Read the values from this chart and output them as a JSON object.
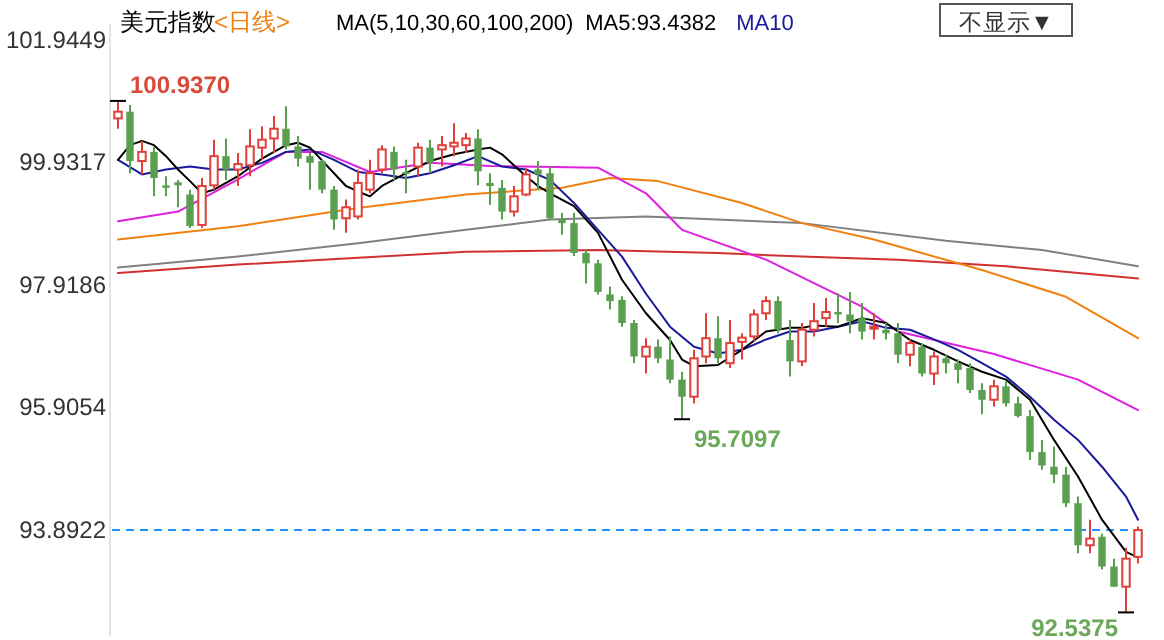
{
  "chart_data": {
    "type": "candlestick",
    "title": "美元指数",
    "subtitle": "<日线>",
    "annotations": [
      "MA(5,10,30,60,100,200)",
      "MA5:93.4382",
      "MA10",
      "不显示▼",
      "100.9370",
      "95.7097",
      "92.5375"
    ],
    "categories": [
      null,
      null,
      null,
      null,
      null,
      null,
      null,
      null,
      null,
      null,
      null,
      null,
      null,
      null,
      null,
      null,
      null,
      null,
      null,
      null,
      null,
      null,
      null,
      null,
      null,
      null,
      null,
      null,
      null,
      null,
      null,
      null,
      null,
      null,
      null,
      null,
      null,
      null,
      null,
      null,
      null,
      null,
      null,
      null,
      null,
      null,
      null,
      null,
      null,
      null,
      null,
      null,
      null,
      null,
      null,
      null,
      null,
      null,
      null,
      null,
      null,
      null,
      null,
      null,
      null,
      null,
      null,
      null,
      null,
      null,
      null,
      null,
      null,
      null,
      null,
      null,
      null,
      null,
      null,
      null,
      null,
      null,
      null,
      null,
      null,
      null
    ],
    "ohlc": [
      [
        100.65,
        100.937,
        100.48,
        100.76
      ],
      [
        100.76,
        100.87,
        99.75,
        99.95
      ],
      [
        99.95,
        100.28,
        99.73,
        100.1
      ],
      [
        100.1,
        100.19,
        99.37,
        99.67
      ],
      [
        99.55,
        99.7,
        99.37,
        99.51
      ],
      [
        99.6,
        99.64,
        99.19,
        99.55
      ],
      [
        99.4,
        99.48,
        98.85,
        98.88
      ],
      [
        98.9,
        99.67,
        98.85,
        99.54
      ],
      [
        99.55,
        100.3,
        99.48,
        100.03
      ],
      [
        100.03,
        100.32,
        99.64,
        99.81
      ],
      [
        99.81,
        100.08,
        99.54,
        99.9
      ],
      [
        99.88,
        100.47,
        99.7,
        100.19
      ],
      [
        100.17,
        100.52,
        99.97,
        100.3
      ],
      [
        100.32,
        100.69,
        100.08,
        100.48
      ],
      [
        100.48,
        100.85,
        100.14,
        100.19
      ],
      [
        100.19,
        100.36,
        99.86,
        99.99
      ],
      [
        100.03,
        100.08,
        99.48,
        99.92
      ],
      [
        99.95,
        99.97,
        99.42,
        99.48
      ],
      [
        99.48,
        99.54,
        98.82,
        98.99
      ],
      [
        99.01,
        99.32,
        98.77,
        99.19
      ],
      [
        99.04,
        99.81,
        98.99,
        99.59
      ],
      [
        99.48,
        99.97,
        99.42,
        99.75
      ],
      [
        99.81,
        100.21,
        99.75,
        100.14
      ],
      [
        100.1,
        100.19,
        99.64,
        99.81
      ],
      [
        99.77,
        99.97,
        99.42,
        99.75
      ],
      [
        99.86,
        100.25,
        99.7,
        100.17
      ],
      [
        100.17,
        100.3,
        99.75,
        99.92
      ],
      [
        100.14,
        100.36,
        99.86,
        100.21
      ],
      [
        100.19,
        100.57,
        100.03,
        100.25
      ],
      [
        100.21,
        100.41,
        100.08,
        100.32
      ],
      [
        100.32,
        100.47,
        99.55,
        99.78
      ],
      [
        99.59,
        99.75,
        99.23,
        99.54
      ],
      [
        99.51,
        99.64,
        98.99,
        99.12
      ],
      [
        99.12,
        99.54,
        99.04,
        99.37
      ],
      [
        99.4,
        99.84,
        99.37,
        99.73
      ],
      [
        99.81,
        99.95,
        99.48,
        99.73
      ],
      [
        99.75,
        99.86,
        98.99,
        99.01
      ],
      [
        98.99,
        99.1,
        98.74,
        98.93
      ],
      [
        98.93,
        99.1,
        98.39,
        98.44
      ],
      [
        98.44,
        98.49,
        97.94,
        98.27
      ],
      [
        98.27,
        98.33,
        97.76,
        97.8
      ],
      [
        97.76,
        97.89,
        97.51,
        97.65
      ],
      [
        97.67,
        97.73,
        97.23,
        97.29
      ],
      [
        97.29,
        97.34,
        96.63,
        96.74
      ],
      [
        96.74,
        97.04,
        96.46,
        96.9
      ],
      [
        96.9,
        97.02,
        96.63,
        96.71
      ],
      [
        96.69,
        97.07,
        96.3,
        96.36
      ],
      [
        96.36,
        96.49,
        95.7097,
        96.08
      ],
      [
        96.08,
        96.85,
        95.97,
        96.71
      ],
      [
        96.74,
        97.45,
        96.63,
        97.04
      ],
      [
        97.04,
        97.4,
        96.63,
        96.71
      ],
      [
        96.63,
        97.34,
        96.55,
        96.96
      ],
      [
        96.98,
        97.12,
        96.69,
        97.05
      ],
      [
        97.07,
        97.51,
        96.99,
        97.43
      ],
      [
        97.45,
        97.73,
        97.34,
        97.65
      ],
      [
        97.65,
        97.73,
        97.12,
        97.18
      ],
      [
        97.01,
        97.34,
        96.41,
        96.66
      ],
      [
        96.66,
        97.29,
        96.58,
        97.18
      ],
      [
        97.18,
        97.62,
        97.07,
        97.32
      ],
      [
        97.37,
        97.7,
        97.23,
        97.47
      ],
      [
        97.47,
        97.78,
        97.29,
        97.43
      ],
      [
        97.43,
        97.8,
        97.12,
        97.32
      ],
      [
        97.37,
        97.62,
        97.02,
        97.15
      ],
      [
        97.21,
        97.45,
        97.02,
        97.23
      ],
      [
        97.18,
        97.29,
        97.02,
        97.12
      ],
      [
        97.12,
        97.29,
        96.63,
        96.77
      ],
      [
        96.77,
        97.02,
        96.58,
        96.96
      ],
      [
        96.9,
        96.96,
        96.41,
        96.46
      ],
      [
        96.46,
        96.82,
        96.27,
        96.74
      ],
      [
        96.71,
        96.77,
        96.46,
        96.63
      ],
      [
        96.63,
        96.69,
        96.3,
        96.52
      ],
      [
        96.55,
        96.63,
        96.14,
        96.19
      ],
      [
        96.19,
        96.3,
        95.79,
        96.03
      ],
      [
        96.03,
        96.36,
        95.92,
        96.25
      ],
      [
        96.25,
        96.33,
        95.92,
        95.97
      ],
      [
        95.97,
        96.08,
        95.74,
        95.76
      ],
      [
        95.76,
        95.86,
        95.04,
        95.17
      ],
      [
        95.17,
        95.37,
        94.88,
        94.95
      ],
      [
        94.93,
        95.26,
        94.66,
        94.8
      ],
      [
        94.8,
        94.93,
        94.27,
        94.33
      ],
      [
        94.33,
        94.44,
        93.51,
        93.64
      ],
      [
        93.64,
        94.06,
        93.51,
        93.75
      ],
      [
        93.78,
        93.83,
        93.24,
        93.29
      ],
      [
        93.29,
        93.42,
        92.96,
        92.96
      ],
      [
        92.96,
        93.6,
        92.5375,
        93.42
      ],
      [
        93.45,
        93.95,
        93.34,
        93.89
      ]
    ],
    "series": [
      {
        "type": "line",
        "color": "#000000",
        "values": [
          99.97,
          100.21,
          100.28,
          100.21,
          100.03,
          99.81,
          99.62,
          99.42,
          99.48,
          null,
          99.7,
          null,
          99.99,
          null,
          100.21,
          100.25,
          100.17,
          null,
          99.75,
          99.54,
          99.45,
          99.37,
          99.54,
          null,
          99.75,
          null,
          99.95,
          null,
          100.06,
          null,
          100.14,
          100.17,
          100.06,
          null,
          99.7,
          99.54,
          99.42,
          null,
          99.21,
          null,
          98.77,
          null,
          98.0,
          null,
          97.45,
          null,
          97.01,
          96.69,
          96.58,
          null,
          96.6,
          null,
          96.85,
          null,
          97.15,
          null,
          97.21,
          97.21,
          97.25,
          null,
          97.23,
          null,
          97.37,
          null,
          97.29,
          null,
          97.01,
          null,
          96.85,
          null,
          96.66,
          null,
          96.49,
          null,
          96.36,
          null,
          96.03,
          null,
          95.37,
          null,
          94.77,
          null,
          94.06,
          null,
          93.53,
          93.44
        ]
      },
      {
        "type": "line",
        "color": "#1a1a9a",
        "values": [
          99.97,
          null,
          99.73,
          null,
          99.81,
          null,
          99.86,
          null,
          99.81,
          null,
          99.81,
          null,
          99.92,
          null,
          100.1,
          null,
          100.14,
          null,
          99.97,
          null,
          99.77,
          null,
          99.73,
          null,
          99.67,
          null,
          99.75,
          null,
          99.88,
          null,
          100.03,
          null,
          99.86,
          null,
          99.81,
          null,
          99.64,
          null,
          99.26,
          null,
          98.82,
          null,
          98.38,
          null,
          97.77,
          null,
          97.23,
          null,
          96.9,
          null,
          96.79,
          null,
          96.85,
          null,
          97.02,
          null,
          97.15,
          null,
          97.15,
          null,
          97.23,
          null,
          97.32,
          null,
          97.21,
          null,
          97.18,
          null,
          97.02,
          null,
          96.85,
          null,
          96.63,
          null,
          96.41,
          null,
          96.08,
          null,
          95.7,
          null,
          95.37,
          null,
          94.93,
          null,
          94.44,
          94.06
        ]
      },
      {
        "type": "line",
        "color": "#e020e0",
        "values": [
          98.96,
          null,
          null,
          null,
          null,
          99.12,
          null,
          null,
          null,
          null,
          99.65,
          null,
          null,
          null,
          100.1,
          null,
          null,
          100.1,
          null,
          null,
          null,
          99.77,
          null,
          null,
          null,
          null,
          99.92,
          null,
          null,
          null,
          null,
          99.87,
          null,
          null,
          null,
          null,
          null,
          null,
          null,
          null,
          99.84,
          null,
          null,
          null,
          99.42,
          null,
          null,
          98.82,
          null,
          null,
          null,
          null,
          null,
          null,
          98.33,
          null,
          null,
          null,
          null,
          null,
          null,
          null,
          97.56,
          null,
          null,
          97.15,
          null,
          null,
          null,
          null,
          null,
          null,
          null,
          96.78,
          null,
          null,
          null,
          null,
          null,
          null,
          96.36,
          null,
          null,
          null,
          null,
          95.86
        ]
      },
      {
        "type": "line",
        "color": "#f08010",
        "values": [
          98.66,
          null,
          null,
          null,
          null,
          null,
          null,
          null,
          null,
          null,
          98.88,
          null,
          null,
          null,
          null,
          null,
          null,
          null,
          null,
          null,
          99.18,
          null,
          null,
          null,
          null,
          null,
          null,
          null,
          null,
          99.4,
          null,
          null,
          null,
          null,
          null,
          null,
          null,
          99.51,
          null,
          null,
          null,
          99.67,
          null,
          null,
          null,
          99.62,
          null,
          null,
          null,
          null,
          null,
          null,
          99.26,
          null,
          null,
          null,
          null,
          98.93,
          null,
          null,
          null,
          null,
          null,
          98.66,
          null,
          null,
          null,
          null,
          null,
          null,
          null,
          null,
          98.16,
          null,
          null,
          null,
          null,
          null,
          null,
          97.72,
          null,
          null,
          null,
          null,
          null,
          97.04
        ]
      },
      {
        "type": "line",
        "color": "#808080",
        "values": [
          98.2,
          null,
          null,
          null,
          null,
          null,
          null,
          null,
          null,
          null,
          98.38,
          null,
          null,
          null,
          null,
          null,
          null,
          null,
          null,
          null,
          98.6,
          null,
          null,
          null,
          null,
          null,
          null,
          null,
          null,
          98.82,
          null,
          null,
          null,
          null,
          null,
          null,
          98.99,
          null,
          null,
          null,
          null,
          null,
          null,
          null,
          99.04,
          null,
          null,
          null,
          null,
          null,
          null,
          null,
          null,
          null,
          null,
          null,
          null,
          98.93,
          null,
          null,
          null,
          null,
          null,
          null,
          null,
          null,
          null,
          null,
          null,
          98.64,
          null,
          null,
          null,
          null,
          null,
          null,
          null,
          98.49,
          null,
          null,
          null,
          null,
          null,
          null,
          null,
          98.22
        ]
      },
      {
        "type": "line",
        "color": "#d03030",
        "values": [
          98.11,
          null,
          null,
          null,
          null,
          null,
          null,
          null,
          null,
          null,
          98.25,
          null,
          null,
          null,
          null,
          null,
          null,
          null,
          null,
          null,
          98.36,
          null,
          null,
          null,
          null,
          null,
          null,
          null,
          null,
          98.46,
          null,
          null,
          null,
          null,
          null,
          null,
          null,
          null,
          null,
          null,
          98.49,
          null,
          null,
          null,
          null,
          null,
          null,
          null,
          null,
          null,
          98.44,
          null,
          null,
          null,
          null,
          null,
          null,
          98.38,
          null,
          null,
          null,
          null,
          null,
          null,
          null,
          98.33,
          null,
          null,
          null,
          null,
          null,
          null,
          null,
          null,
          98.22,
          null,
          null,
          null,
          null,
          null,
          null,
          null,
          null,
          null,
          null,
          98.02
        ]
      }
    ],
    "ylim": [
      92.15,
      102.2
    ],
    "yticks": [
      101.9449,
      99.9317,
      97.9186,
      95.9054,
      93.8922
    ],
    "ref_lines": [
      {
        "axis": "y",
        "value": 93.8922,
        "color": "#1e90ff",
        "line_style": "dashed"
      }
    ],
    "tick_labels": "y"
  }
}
